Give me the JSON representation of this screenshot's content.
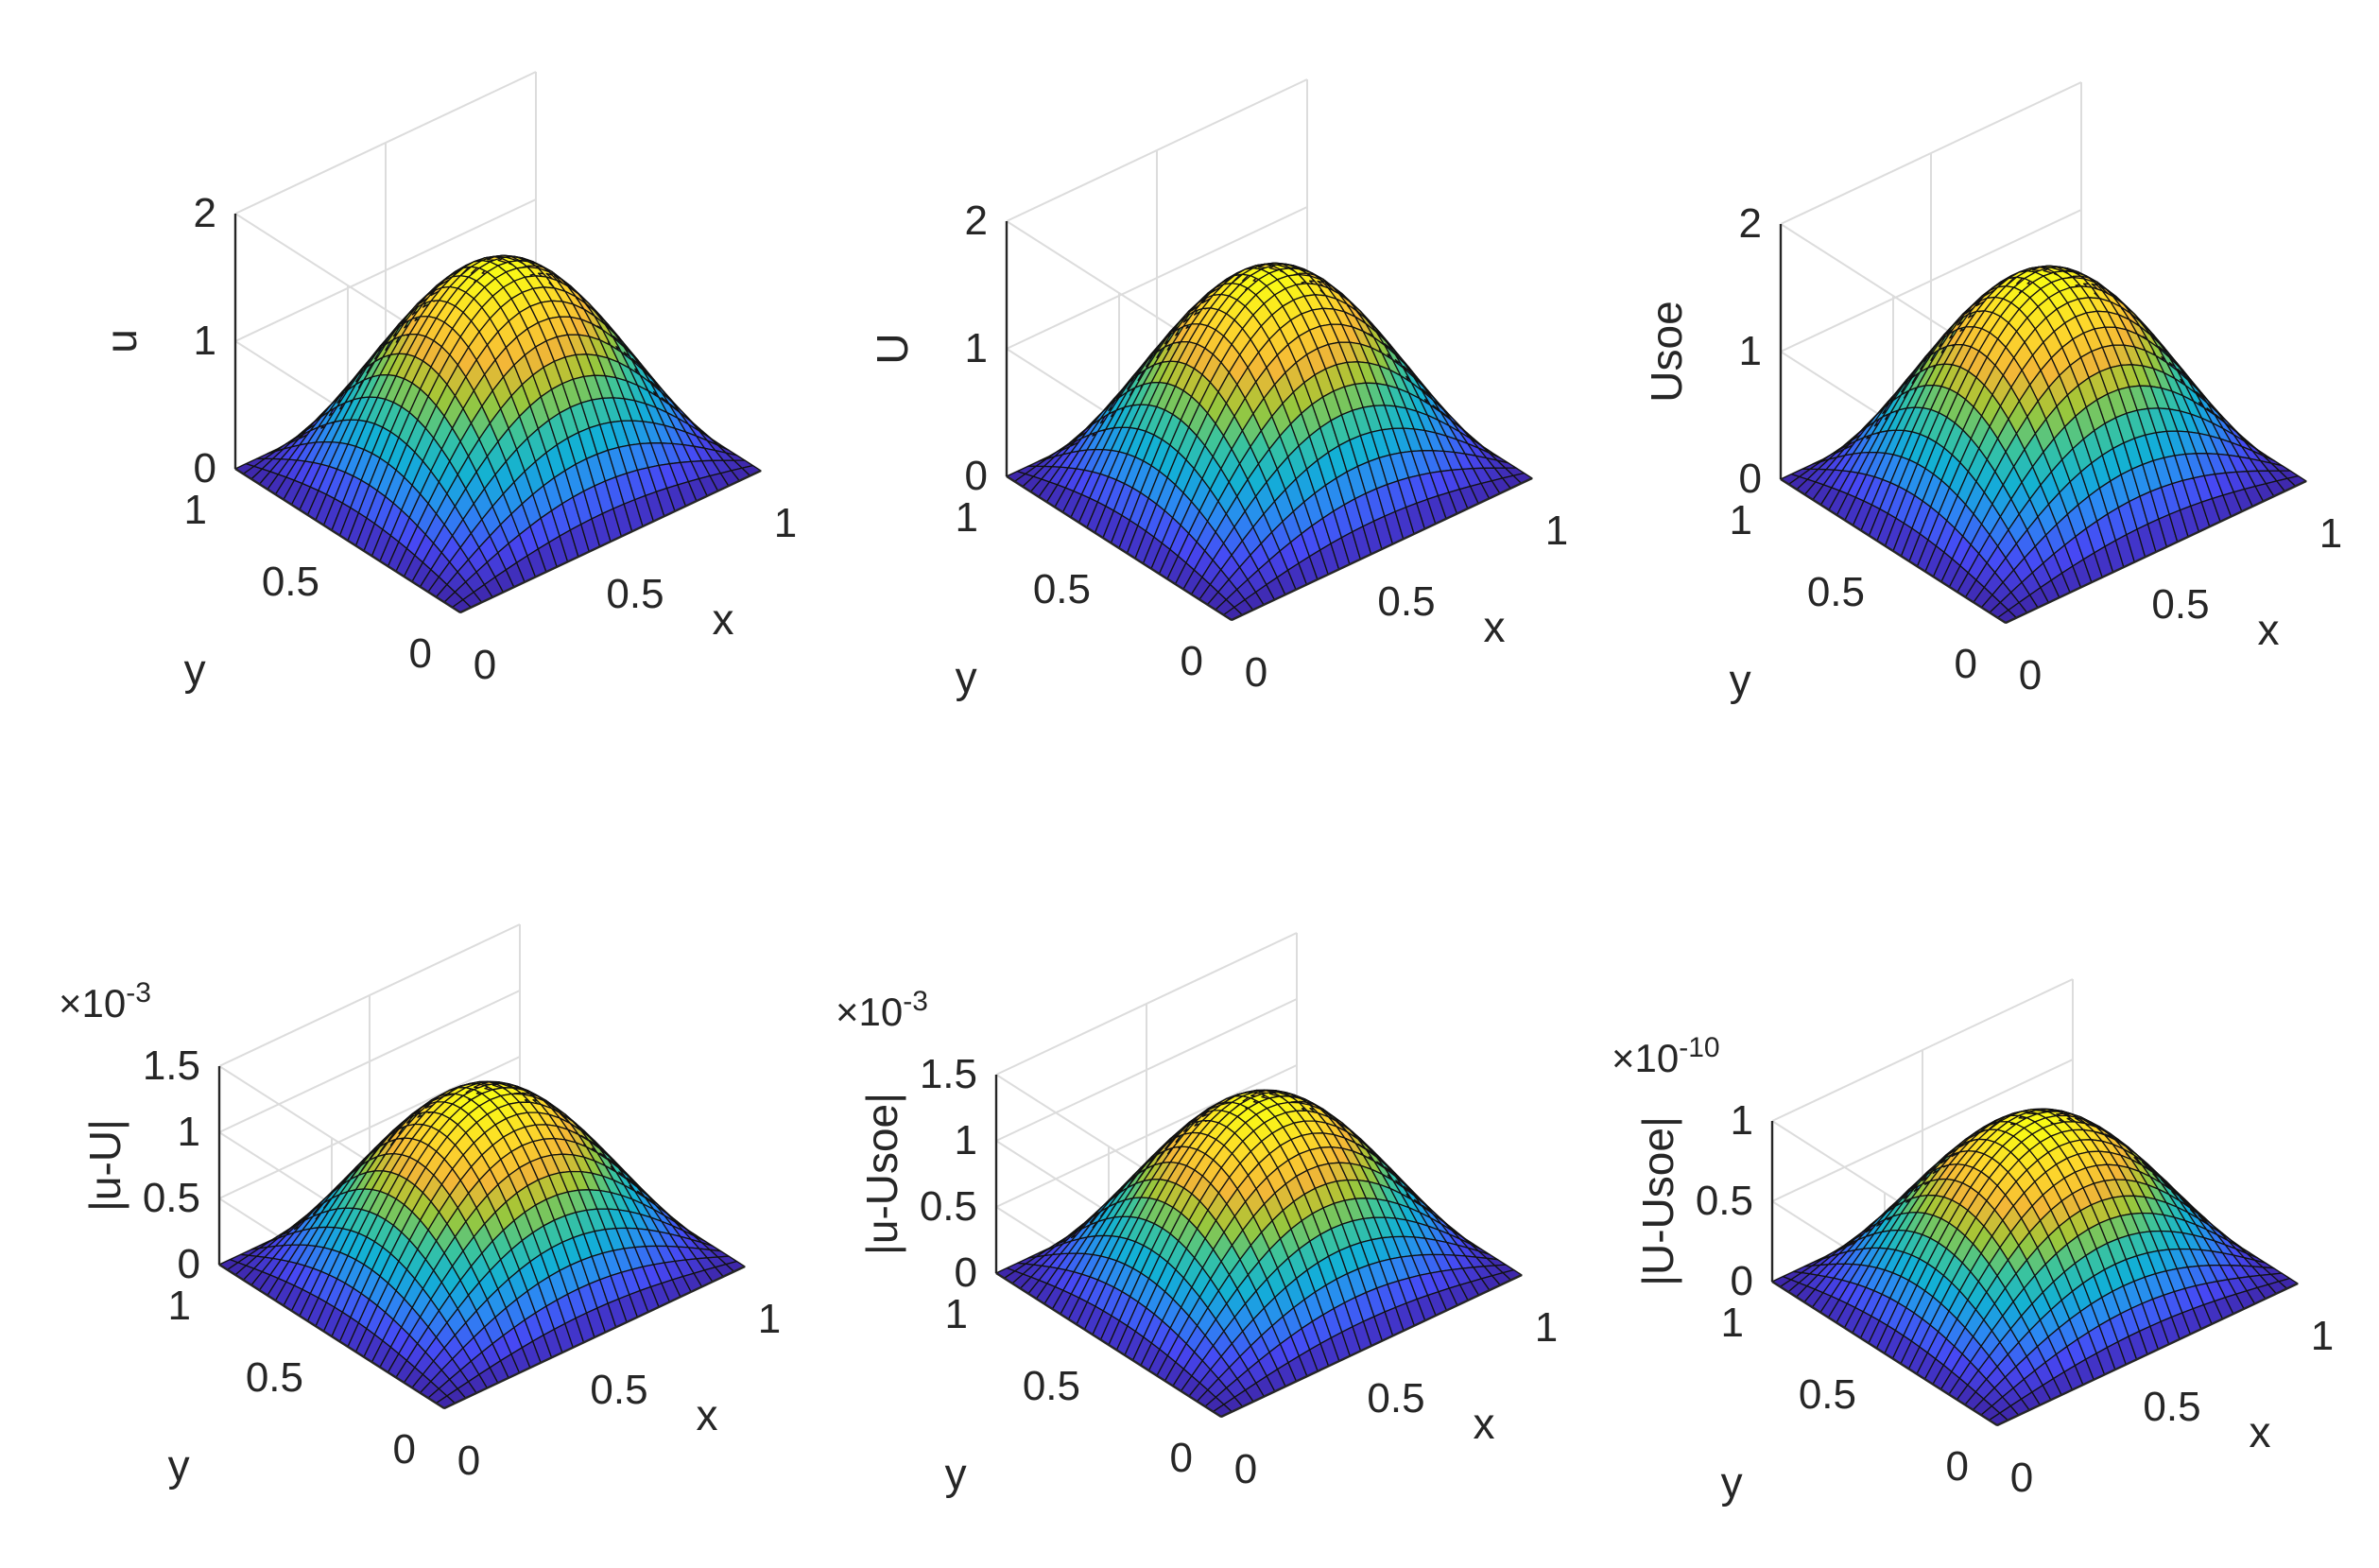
{
  "chart_data": [
    {
      "type": "surface",
      "function": "sin(pi*x)*sin(pi*y)",
      "peak": 1.6,
      "zlabel": "u",
      "xlabel": "x",
      "ylabel": "y",
      "xlim": [
        0,
        1
      ],
      "ylim": [
        0,
        1
      ],
      "zlim": [
        0,
        2
      ],
      "xticks": [
        0,
        0.5,
        1
      ],
      "yticks": [
        0,
        0.5,
        1
      ],
      "zticks": [
        0,
        1,
        2
      ],
      "xtick_labels": [
        "0",
        "0.5",
        "1"
      ],
      "ytick_labels": [
        "0",
        "0.5",
        "1"
      ],
      "ztick_labels": [
        "0",
        "1",
        "2"
      ],
      "multiplier": null,
      "multiplier_exp": null
    },
    {
      "type": "surface",
      "function": "sin(pi*x)*sin(pi*y)",
      "peak": 1.6,
      "zlabel": "U",
      "xlabel": "x",
      "ylabel": "y",
      "xlim": [
        0,
        1
      ],
      "ylim": [
        0,
        1
      ],
      "zlim": [
        0,
        2
      ],
      "xticks": [
        0,
        0.5,
        1
      ],
      "yticks": [
        0,
        0.5,
        1
      ],
      "zticks": [
        0,
        1,
        2
      ],
      "xtick_labels": [
        "0",
        "0.5",
        "1"
      ],
      "ytick_labels": [
        "0",
        "0.5",
        "1"
      ],
      "ztick_labels": [
        "0",
        "1",
        "2"
      ],
      "multiplier": null,
      "multiplier_exp": null
    },
    {
      "type": "surface",
      "function": "sin(pi*x)*sin(pi*y)",
      "peak": 1.6,
      "zlabel": "Usoe",
      "xlabel": "x",
      "ylabel": "y",
      "xlim": [
        0,
        1
      ],
      "ylim": [
        0,
        1
      ],
      "zlim": [
        0,
        2
      ],
      "xticks": [
        0,
        0.5,
        1
      ],
      "yticks": [
        0,
        0.5,
        1
      ],
      "zticks": [
        0,
        1,
        2
      ],
      "xtick_labels": [
        "0",
        "0.5",
        "1"
      ],
      "ytick_labels": [
        "0",
        "0.5",
        "1"
      ],
      "ztick_labels": [
        "0",
        "1",
        "2"
      ],
      "multiplier": null,
      "multiplier_exp": null
    },
    {
      "type": "surface",
      "function": "sin(pi*x)*sin(pi*y)",
      "peak": 1.3,
      "zlabel": "|u-U|",
      "xlabel": "x",
      "ylabel": "y",
      "xlim": [
        0,
        1
      ],
      "ylim": [
        0,
        1
      ],
      "zlim": [
        0,
        1.5
      ],
      "xticks": [
        0,
        0.5,
        1
      ],
      "yticks": [
        0,
        0.5,
        1
      ],
      "zticks": [
        0,
        0.5,
        1,
        1.5
      ],
      "xtick_labels": [
        "0",
        "0.5",
        "1"
      ],
      "ytick_labels": [
        "0",
        "0.5",
        "1"
      ],
      "ztick_labels": [
        "0",
        "0.5",
        "1",
        "1.5"
      ],
      "multiplier": "×10",
      "multiplier_exp": "-3"
    },
    {
      "type": "surface",
      "function": "sin(pi*x)*sin(pi*y)",
      "peak": 1.3,
      "zlabel": "|u-Usoe|",
      "xlabel": "x",
      "ylabel": "y",
      "xlim": [
        0,
        1
      ],
      "ylim": [
        0,
        1
      ],
      "zlim": [
        0,
        1.5
      ],
      "xticks": [
        0,
        0.5,
        1
      ],
      "yticks": [
        0,
        0.5,
        1
      ],
      "zticks": [
        0,
        0.5,
        1,
        1.5
      ],
      "xtick_labels": [
        "0",
        "0.5",
        "1"
      ],
      "ytick_labels": [
        "0",
        "0.5",
        "1"
      ],
      "ztick_labels": [
        "0",
        "0.5",
        "1",
        "1.5"
      ],
      "multiplier": "×10",
      "multiplier_exp": "-3"
    },
    {
      "type": "surface",
      "function": "sin(pi*x)*sin(pi*y)",
      "peak": 1.0,
      "zlabel": "|U-Usoe|",
      "xlabel": "x",
      "ylabel": "y",
      "xlim": [
        0,
        1
      ],
      "ylim": [
        0,
        1
      ],
      "zlim": [
        0,
        1
      ],
      "xticks": [
        0,
        0.5,
        1
      ],
      "yticks": [
        0,
        0.5,
        1
      ],
      "zticks": [
        0,
        0.5,
        1
      ],
      "xtick_labels": [
        "0",
        "0.5",
        "1"
      ],
      "ytick_labels": [
        "0",
        "0.5",
        "1"
      ],
      "ztick_labels": [
        "0",
        "0.5",
        "1"
      ],
      "multiplier": "×10",
      "multiplier_exp": "-10"
    }
  ],
  "colormap": [
    "#3e26a8",
    "#4748f4",
    "#2c87f3",
    "#12b0d6",
    "#3ac49e",
    "#a0c736",
    "#f3b637",
    "#fdd82b",
    "#f9fb15"
  ]
}
